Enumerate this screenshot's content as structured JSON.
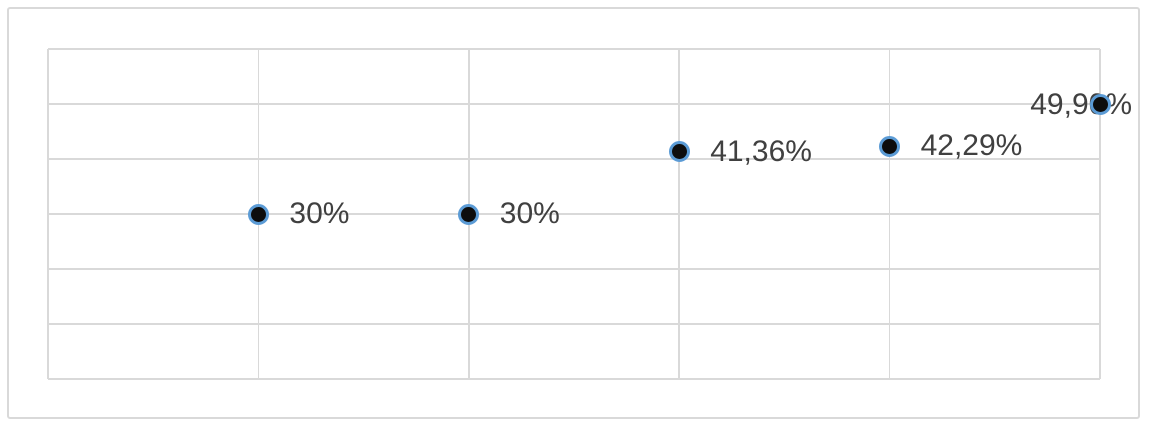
{
  "chart_data": {
    "type": "scatter",
    "title": "",
    "x": [
      1,
      2,
      3,
      4,
      5
    ],
    "values": [
      30,
      30,
      41.36,
      42.29,
      49.9
    ],
    "point_labels": [
      "30%",
      "30%",
      "41,36%",
      "42,29%",
      "49,90%"
    ],
    "label_side": [
      "right",
      "right",
      "right",
      "right",
      "left"
    ],
    "xlabel": "",
    "ylabel": "",
    "xlim": [
      0,
      5
    ],
    "ylim": [
      0,
      60
    ],
    "x_major_unit": 1,
    "y_major_unit": 10,
    "grid": "on",
    "legend": "none",
    "axis_tick_labels": "hidden",
    "colors": {
      "background": "#ffffff",
      "chart_border": "#d9d9d9",
      "gridline": "#d9d9d9",
      "marker_fill": "#0d0d0d",
      "marker_ring": "#5b9bd5",
      "label_text": "#404040"
    }
  }
}
